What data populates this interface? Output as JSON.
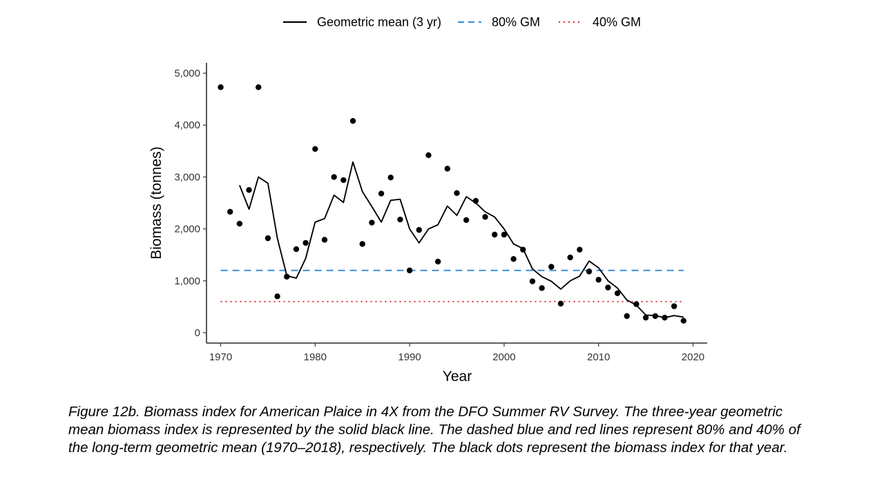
{
  "chart_data": {
    "type": "line",
    "xlabel": "Year",
    "ylabel": "Biomass (tonnes)",
    "xlim": [
      1968.5,
      2021.5
    ],
    "ylim": [
      -200,
      5200
    ],
    "x_ticks": [
      1970,
      1980,
      1990,
      2000,
      2010,
      2020
    ],
    "y_ticks": [
      0,
      1000,
      2000,
      3000,
      4000,
      5000
    ],
    "y_tick_labels": [
      "0",
      "1,000",
      "2,000",
      "3,000",
      "4,000",
      "5,000"
    ],
    "x_tick_labels": [
      "1970",
      "1980",
      "1990",
      "2000",
      "2010",
      "2020"
    ],
    "grid": false,
    "legend_position": "top",
    "legend": [
      {
        "label": "Geometric mean (3 yr)",
        "style": "solid",
        "color": "#000000"
      },
      {
        "label": "80% GM",
        "style": "dashed",
        "color": "#3a8fdc"
      },
      {
        "label": "40% GM",
        "style": "dotted",
        "color": "#e0303a"
      }
    ],
    "series": [
      {
        "name": "Geometric mean (3 yr)",
        "type": "line",
        "style": "solid",
        "color": "#000000",
        "x": [
          1972,
          1973,
          1974,
          1975,
          1976,
          1977,
          1978,
          1979,
          1980,
          1981,
          1982,
          1983,
          1984,
          1985,
          1986,
          1987,
          1988,
          1989,
          1990,
          1991,
          1992,
          1993,
          1994,
          1995,
          1996,
          1997,
          1998,
          1999,
          2000,
          2001,
          2002,
          2003,
          2004,
          2005,
          2006,
          2007,
          2008,
          2009,
          2010,
          2011,
          2012,
          2013,
          2014,
          2015,
          2016,
          2017,
          2018,
          2019
        ],
        "y": [
          2840,
          2380,
          3000,
          2880,
          1820,
          1100,
          1050,
          1430,
          2130,
          2200,
          2650,
          2510,
          3290,
          2720,
          2430,
          2130,
          2550,
          2570,
          2000,
          1730,
          2000,
          2080,
          2440,
          2260,
          2620,
          2500,
          2330,
          2230,
          2000,
          1710,
          1620,
          1230,
          1080,
          990,
          840,
          1000,
          1090,
          1380,
          1250,
          1000,
          860,
          630,
          530,
          340,
          330,
          290,
          330,
          300
        ]
      },
      {
        "name": "80% GM",
        "type": "hline",
        "style": "dashed",
        "color": "#3a8fdc",
        "x_range": [
          1970,
          2019
        ],
        "value": 1200
      },
      {
        "name": "40% GM",
        "type": "hline",
        "style": "dotted",
        "color": "#e0303a",
        "x_range": [
          1970,
          2019
        ],
        "value": 600
      },
      {
        "name": "Biomass index",
        "type": "scatter",
        "color": "#000000",
        "x": [
          1970,
          1971,
          1972,
          1973,
          1974,
          1975,
          1976,
          1977,
          1978,
          1979,
          1980,
          1981,
          1982,
          1983,
          1984,
          1985,
          1986,
          1987,
          1988,
          1989,
          1990,
          1991,
          1992,
          1993,
          1994,
          1995,
          1996,
          1997,
          1998,
          1999,
          2000,
          2001,
          2002,
          2003,
          2004,
          2005,
          2006,
          2007,
          2008,
          2009,
          2010,
          2011,
          2012,
          2013,
          2014,
          2015,
          2016,
          2017,
          2018,
          2019
        ],
        "y": [
          4730,
          2330,
          2100,
          2750,
          4730,
          1820,
          700,
          1080,
          1610,
          1730,
          3540,
          1790,
          3000,
          2940,
          4080,
          1710,
          2120,
          2680,
          2990,
          2180,
          1200,
          1980,
          3420,
          1370,
          3160,
          2690,
          2170,
          2540,
          2230,
          1890,
          1890,
          1420,
          1600,
          990,
          860,
          1270,
          560,
          1450,
          1600,
          1180,
          1020,
          870,
          760,
          320,
          550,
          290,
          320,
          290,
          510,
          230
        ]
      }
    ]
  },
  "caption": "Figure 12b. Biomass index for American Plaice in 4X from the DFO Summer RV Survey. The three-year geometric mean biomass index is represented by the solid black line. The dashed blue and red lines represent 80% and 40% of the long-term geometric mean (1970–2018), respectively. The black dots represent the biomass index for that year."
}
